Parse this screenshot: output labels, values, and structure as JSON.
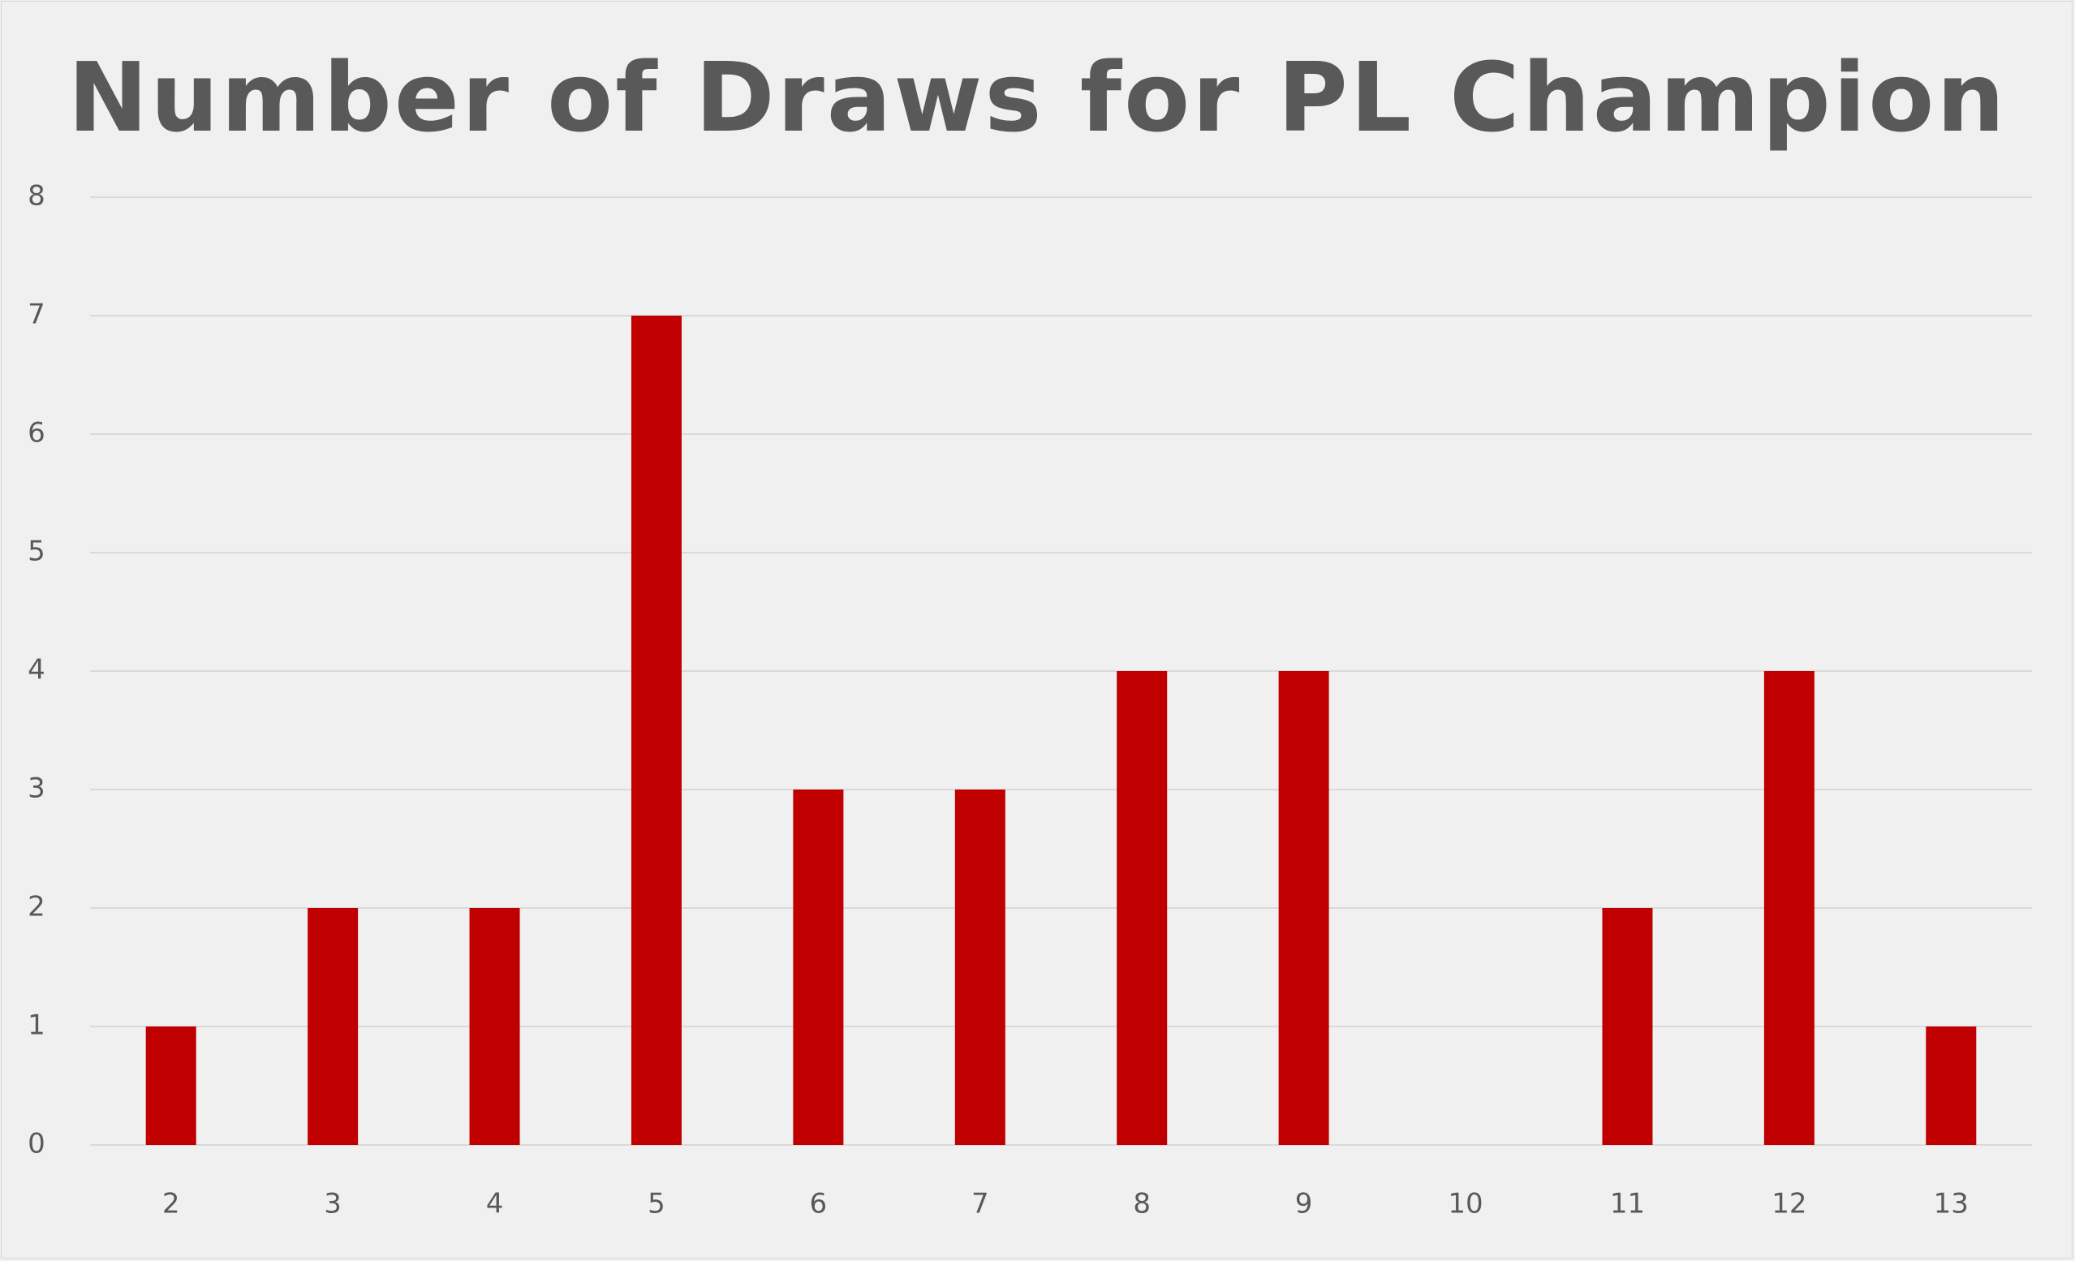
{
  "chart_data": {
    "type": "bar",
    "title": "Number of Draws for PL Champion",
    "xlabel": "",
    "ylabel": "",
    "categories": [
      "2",
      "3",
      "4",
      "5",
      "6",
      "7",
      "8",
      "9",
      "10",
      "11",
      "12",
      "13"
    ],
    "values": [
      1,
      2,
      2,
      7,
      3,
      3,
      4,
      4,
      0,
      2,
      4,
      1
    ],
    "ylim": [
      0,
      8
    ],
    "yticks": [
      "0",
      "1",
      "2",
      "3",
      "4",
      "5",
      "6",
      "7",
      "8"
    ],
    "grid": true,
    "legend": "none",
    "bar_color": "#c00000",
    "gridline_color": "#d9d9d9",
    "text_color": "#595959",
    "background_color": "#f0f0f0"
  }
}
